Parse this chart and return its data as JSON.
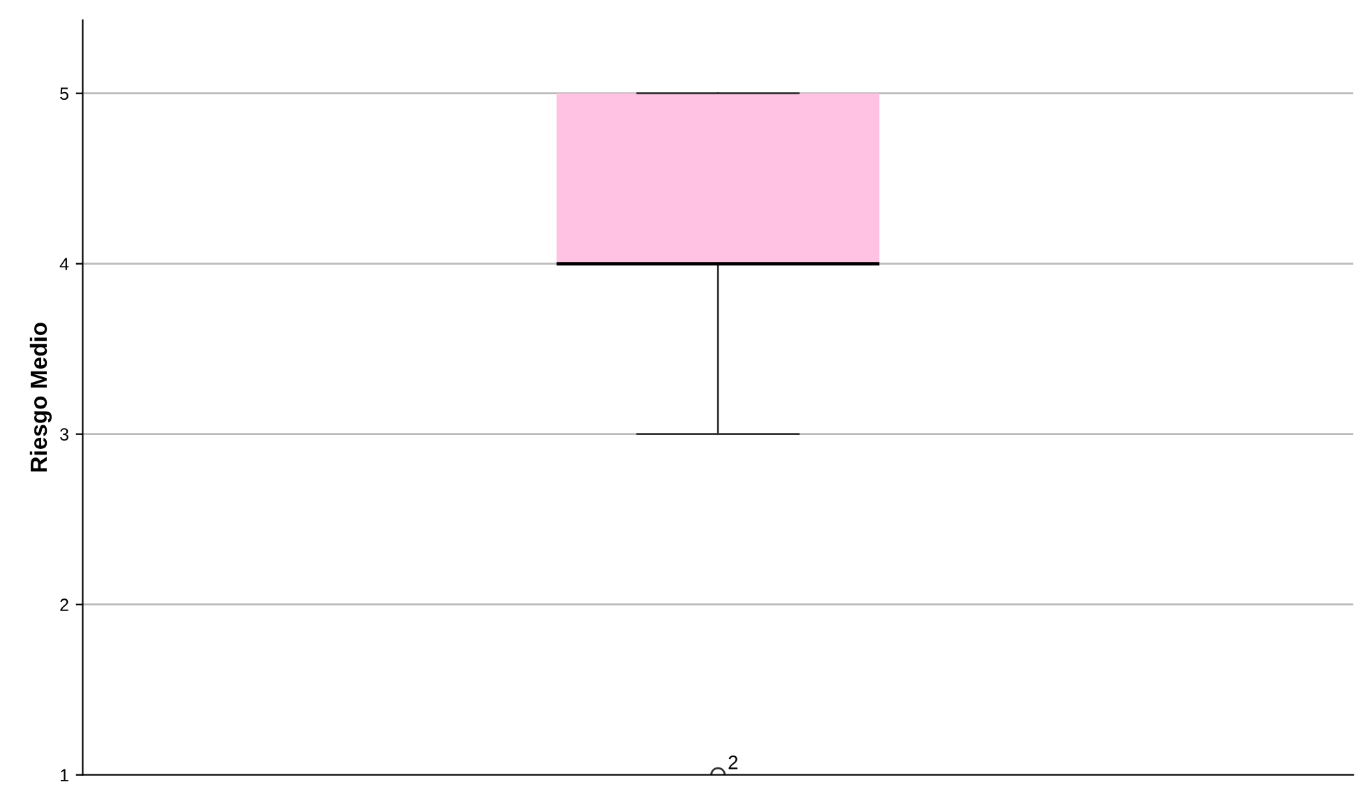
{
  "chart_data": {
    "type": "box",
    "ylabel": "Riesgo Medio",
    "categories": [
      null
    ],
    "boxes": [
      {
        "low": 3,
        "q1": 4,
        "median": 4,
        "q3": 5,
        "high": 5,
        "outliers": [
          1
        ]
      }
    ],
    "color": "#ffc2e2",
    "annotations": [
      "2"
    ],
    "ylim": [
      1,
      5.43
    ],
    "yticks": [
      1,
      2,
      3,
      4,
      5
    ],
    "grid": "y"
  }
}
